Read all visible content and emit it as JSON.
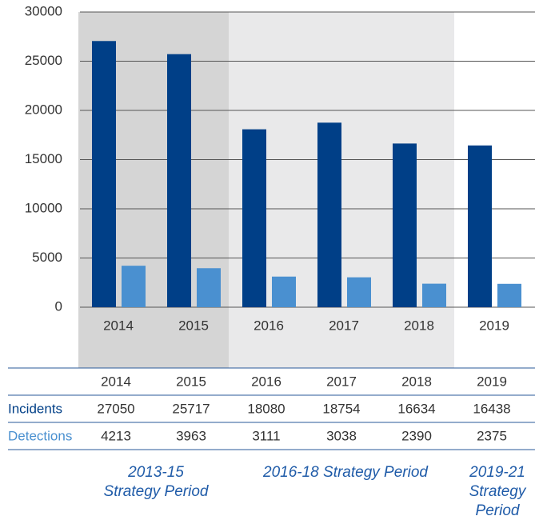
{
  "chart_data": {
    "type": "bar",
    "categories": [
      "2014",
      "2015",
      "2016",
      "2017",
      "2018",
      "2019"
    ],
    "series": [
      {
        "name": "Incidents",
        "color": "#003f87",
        "values": [
          27050,
          25717,
          18080,
          18754,
          16634,
          16438
        ]
      },
      {
        "name": "Detections",
        "color": "#4a90d0",
        "values": [
          4213,
          3963,
          3111,
          3038,
          2390,
          2375
        ]
      }
    ],
    "ylim": [
      0,
      30000
    ],
    "yticks": [
      0,
      5000,
      10000,
      15000,
      20000,
      25000,
      30000
    ],
    "grid": true,
    "periods": [
      {
        "lines": [
          "2013-15",
          "Strategy Period"
        ],
        "shade": "#d5d5d5"
      },
      {
        "lines": [
          "2016-18 Strategy Period"
        ],
        "shade": "#e9e9ea"
      },
      {
        "lines": [
          "2019-21",
          "Strategy",
          "Period"
        ],
        "shade": "#ffffff"
      }
    ]
  }
}
